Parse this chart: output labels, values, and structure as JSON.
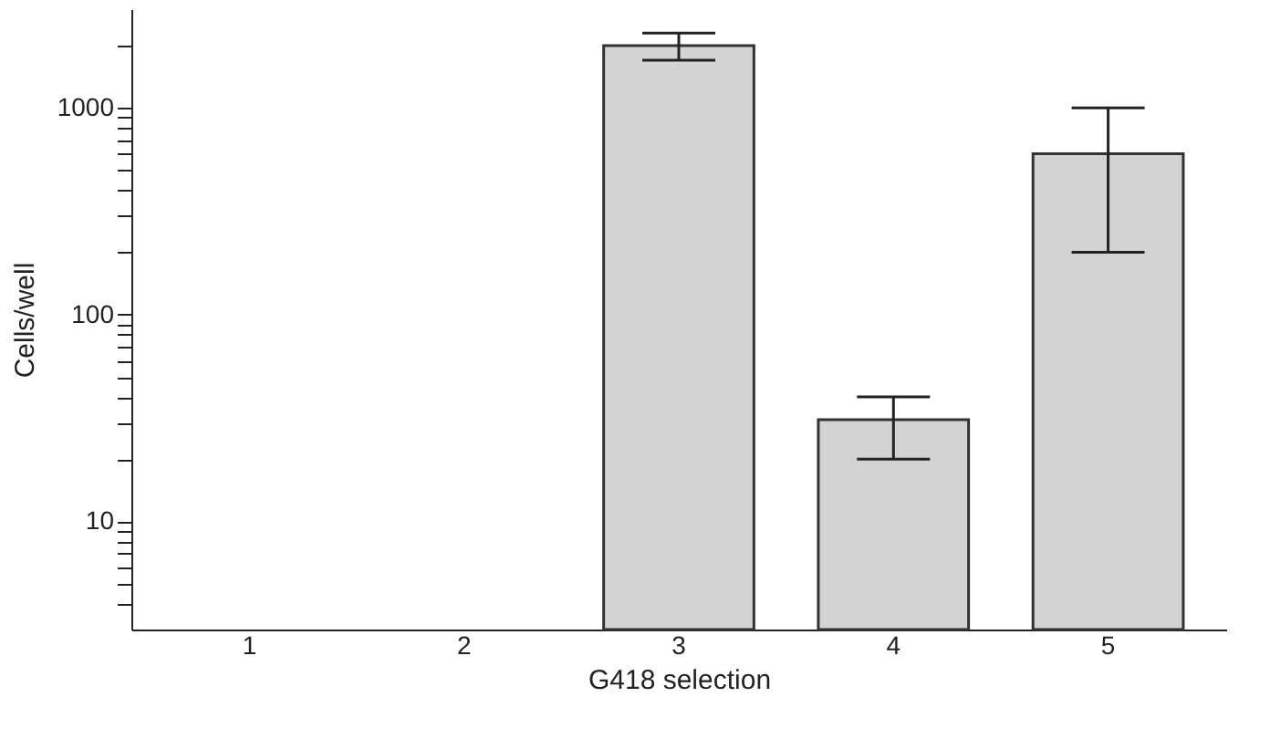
{
  "chart_data": {
    "type": "bar",
    "xlabel": "G418 selection",
    "ylabel": "Cells/well",
    "categories": [
      "1",
      "2",
      "3",
      "4",
      "5"
    ],
    "values": [
      null,
      null,
      2000,
      31,
      600
    ],
    "errors": [
      null,
      null,
      [
        1700,
        2300
      ],
      [
        20,
        40
      ],
      [
        200,
        1000
      ]
    ],
    "colors": [
      "#333333",
      "#333333",
      "#d3d3d3",
      "#d3d3d3",
      "#d3d3d3"
    ],
    "log": "y",
    "ylim": [
      3,
      3000
    ],
    "yticks": [
      {
        "value": 4,
        "label": null
      },
      {
        "value": 5,
        "label": null
      },
      {
        "value": 6,
        "label": null
      },
      {
        "value": 7,
        "label": null
      },
      {
        "value": 8,
        "label": null
      },
      {
        "value": 9,
        "label": null
      },
      10,
      {
        "value": 20,
        "label": null
      },
      {
        "value": 30,
        "label": null
      },
      {
        "value": 40,
        "label": null
      },
      {
        "value": 50,
        "label": null
      },
      {
        "value": 60,
        "label": null
      },
      {
        "value": 70,
        "label": null
      },
      {
        "value": 80,
        "label": null
      },
      {
        "value": 90,
        "label": null
      },
      100,
      {
        "value": 200,
        "label": null
      },
      {
        "value": 300,
        "label": null
      },
      {
        "value": 400,
        "label": null
      },
      {
        "value": 500,
        "label": null
      },
      {
        "value": 600,
        "label": null
      },
      {
        "value": 700,
        "label": null
      },
      {
        "value": 800,
        "label": null
      },
      {
        "value": 900,
        "label": null
      },
      1000,
      {
        "value": 2000,
        "label": null
      }
    ],
    "grid": false
  }
}
